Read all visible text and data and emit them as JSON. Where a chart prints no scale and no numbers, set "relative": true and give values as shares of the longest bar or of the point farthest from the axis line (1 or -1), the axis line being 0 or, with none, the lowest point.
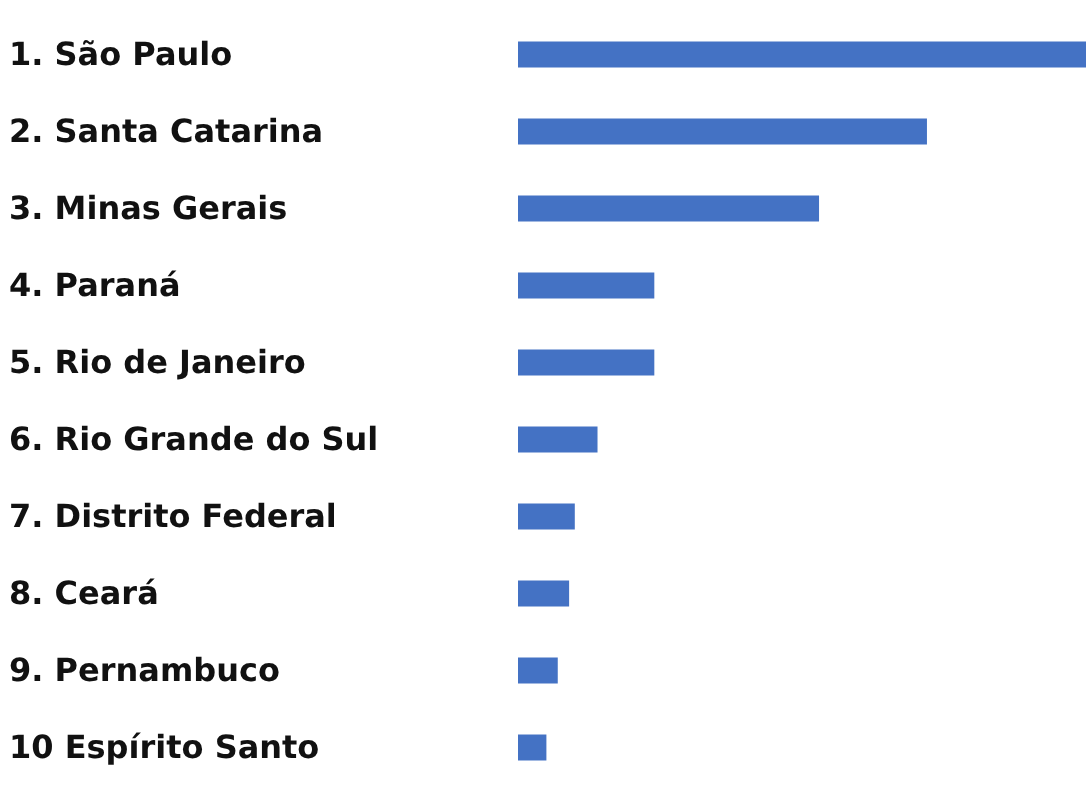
{
  "chart_data": {
    "type": "bar",
    "orientation": "horizontal",
    "relative": true,
    "categories": [
      "1. São Paulo",
      "2. Santa Catarina",
      "3. Minas Gerais",
      "4. Paraná",
      "5. Rio de Janeiro",
      "6. Rio Grande do Sul",
      "7. Distrito Federal",
      "8. Ceará",
      "9. Pernambuco",
      "10 Espírito Santo"
    ],
    "values": [
      1,
      0.72,
      0.53,
      0.24,
      0.24,
      0.14,
      0.1,
      0.09,
      0.07,
      0.05
    ],
    "color": "#4472c4"
  }
}
